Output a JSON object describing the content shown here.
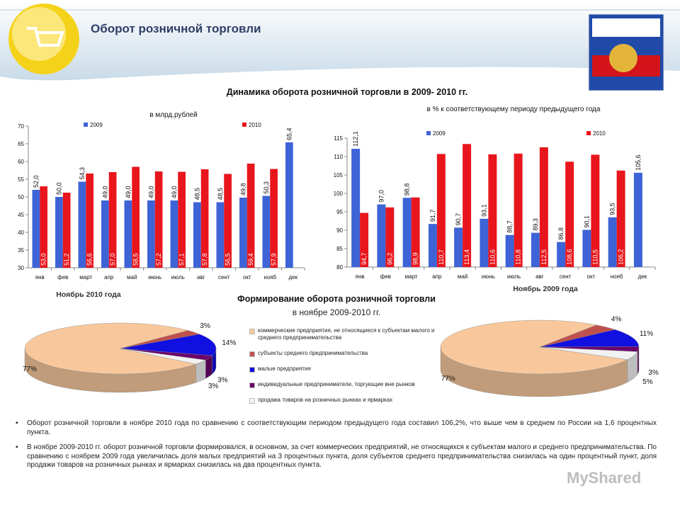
{
  "header": {
    "title": "Оборот розничной торговли"
  },
  "section_title": "Динамика оборота розничной торговли в 2009- 2010 гг.",
  "chart_data": [
    {
      "type": "bar",
      "subtitle": "в млрд.рублей",
      "categories": [
        "янв",
        "фев",
        "март",
        "апр",
        "май",
        "июнь",
        "июль",
        "авг",
        "сент",
        "окт",
        "нояб",
        "дек"
      ],
      "series": [
        {
          "name": "2009",
          "color": "#3d63d6",
          "values": [
            52.0,
            50.0,
            54.3,
            49.0,
            49.0,
            49.0,
            49.0,
            48.5,
            48.5,
            49.8,
            50.3,
            65.4
          ],
          "value_labels": [
            "52,0",
            "50,0",
            "54,3",
            "49,0",
            "49,0",
            "49,0",
            "49,0",
            "48,5",
            "48,5",
            "49,8",
            "50,3",
            "65,4"
          ]
        },
        {
          "name": "2010",
          "color": "#e8161c",
          "values": [
            53.0,
            51.2,
            56.6,
            57.0,
            58.5,
            57.2,
            57.1,
            57.8,
            56.5,
            59.4,
            57.9,
            null
          ],
          "value_labels": [
            "53,0",
            "51,2",
            "56,6",
            "57,0",
            "58,5",
            "57,2",
            "57,1",
            "57,8",
            "56,5",
            "59,4",
            "57,9",
            null
          ]
        }
      ],
      "ylim": [
        30,
        70
      ],
      "yticks": [
        30,
        35,
        40,
        45,
        50,
        55,
        60,
        65,
        70
      ]
    },
    {
      "type": "bar",
      "subtitle": "в % к соответствующему периоду предыдущего года",
      "categories": [
        "янв",
        "фев",
        "март",
        "апр",
        "май",
        "июнь",
        "июль",
        "авг",
        "сент",
        "окт",
        "нояб",
        "дек"
      ],
      "series": [
        {
          "name": "2009",
          "color": "#3d63d6",
          "values": [
            112.1,
            97.0,
            98.8,
            91.7,
            90.7,
            93.1,
            88.7,
            89.3,
            86.8,
            90.1,
            93.5,
            105.6
          ],
          "value_labels": [
            "112,1",
            "97,0",
            "98,8",
            "91,7",
            "90,7",
            "93,1",
            "88,7",
            "89,3",
            "86,8",
            "90,1",
            "93,5",
            "105,6"
          ]
        },
        {
          "name": "2010",
          "color": "#e8161c",
          "values": [
            94.7,
            96.2,
            98.9,
            110.7,
            113.4,
            110.6,
            110.8,
            112.5,
            108.6,
            110.5,
            106.2,
            null
          ],
          "value_labels": [
            "94,7",
            "96,2",
            "98,9",
            "110,7",
            "113,4",
            "110,6",
            "110,8",
            "112,5",
            "108,6",
            "110,5",
            "106,2",
            null
          ]
        }
      ],
      "ylim": [
        80,
        115
      ],
      "yticks": [
        80,
        85,
        90,
        95,
        100,
        105,
        110,
        115
      ]
    },
    {
      "type": "pie",
      "title": "Формирование оборота розничной торговли",
      "subtitle": "в ноябре 2009-2010 гг.",
      "categories": [
        "коммерческие предприятия, не относящиеся к субъектам малого и среднего предпринимательства",
        "субъекты среднего предпринимательства",
        "малые предприятия",
        "индивидуальные предприниматели, торгующие вне рынков",
        "продажа товаров на розничных рынках и ярмарках"
      ],
      "colors": [
        "#f8c89c",
        "#c0504d",
        "#1010e0",
        "#6b006b",
        "#f2f2f2"
      ],
      "series": [
        {
          "name": "Ноябрь 2010 года",
          "values": [
            77,
            3,
            14,
            3,
            3
          ],
          "value_labels": [
            "77%",
            "3%",
            "14%",
            "3%",
            "3%"
          ]
        },
        {
          "name": "Ноябрь 2009 года",
          "values": [
            77,
            4,
            11,
            3,
            5
          ],
          "value_labels": [
            "77%",
            "4%",
            "11%",
            "3%",
            "5%"
          ]
        }
      ]
    }
  ],
  "bullets": [
    "Оборот розничной торговли в ноябре 2010 года по сравнению с соответствующим периодом предыдущего года составил 106,2%, что выше чем в среднем по России на 1,6 процентных пункта.",
    "В ноябре 2009-2010 гг. оборот розничной торговли формировался, в основном, за счет коммерческих предприятий, не относящихся к субъектам малого и среднего предпринимательства. По сравнению с ноябрем 2009 года увеличилась доля малых предприятий на 3 процентных пункта, доля субъектов среднего предпринимательства снизилась на один процентный пункт, доля продажи товаров на розничных рынках и ярмарках снизилась на два процентных пункта."
  ],
  "watermark": "MyShared"
}
